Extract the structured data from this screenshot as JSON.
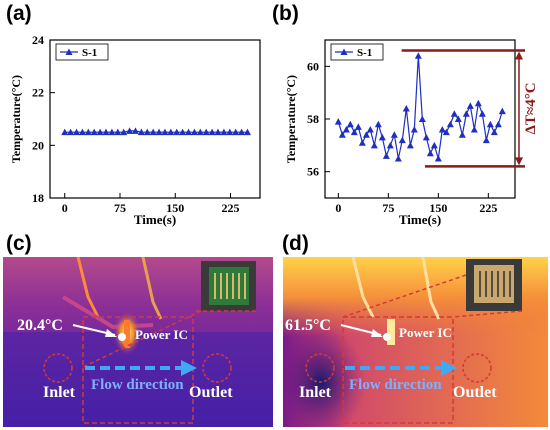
{
  "panels": {
    "a": {
      "letter": "(a)"
    },
    "b": {
      "letter": "(b)"
    },
    "c": {
      "letter": "(c)",
      "temp_label": "20.4°C",
      "ic_label": "Power IC",
      "flow_label": "Flow direction",
      "inlet_label": "Inlet",
      "outlet_label": "Outlet"
    },
    "d": {
      "letter": "(d)",
      "temp_label": "61.5°C",
      "ic_label": "Power IC",
      "flow_label": "Flow direction",
      "inlet_label": "Inlet",
      "outlet_label": "Outlet"
    }
  },
  "colors": {
    "line": "#1f2fbf",
    "annotation": "#8b1a1a",
    "ic_dot": "#ffffff",
    "flow_arrow": "#3fa9f5",
    "flow_text": "#7fb0ff",
    "dashed_box": "#c0392b"
  },
  "chart_data": [
    {
      "type": "line",
      "title": "",
      "xlabel": "Time(s)",
      "ylabel": "Temperature(°C)",
      "xlim": [
        -20,
        265
      ],
      "ylim": [
        18,
        24
      ],
      "xticks": [
        0,
        75,
        150,
        225
      ],
      "yticks": [
        18,
        20,
        22,
        24
      ],
      "series": [
        {
          "name": "S-1",
          "x": [
            0,
            8,
            16,
            24,
            32,
            40,
            48,
            56,
            64,
            72,
            80,
            88,
            96,
            104,
            112,
            120,
            128,
            136,
            144,
            152,
            160,
            168,
            176,
            184,
            192,
            200,
            208,
            216,
            224,
            232,
            240,
            248
          ],
          "y": [
            20.5,
            20.5,
            20.5,
            20.5,
            20.5,
            20.5,
            20.5,
            20.5,
            20.5,
            20.5,
            20.5,
            20.55,
            20.55,
            20.5,
            20.5,
            20.5,
            20.5,
            20.5,
            20.5,
            20.5,
            20.5,
            20.5,
            20.5,
            20.5,
            20.5,
            20.5,
            20.5,
            20.5,
            20.5,
            20.5,
            20.5,
            20.5
          ]
        }
      ],
      "legend": "top-left"
    },
    {
      "type": "line",
      "title": "",
      "xlabel": "Time(s)",
      "ylabel": "Temperature(°C)",
      "xlim": [
        -20,
        265
      ],
      "ylim": [
        55,
        61
      ],
      "xticks": [
        0,
        75,
        150,
        225
      ],
      "yticks": [
        56,
        58,
        60
      ],
      "annotation": "ΔT≈4°C",
      "series": [
        {
          "name": "S-1",
          "x": [
            0,
            6,
            12,
            18,
            24,
            30,
            36,
            42,
            48,
            54,
            60,
            66,
            72,
            78,
            84,
            90,
            96,
            102,
            108,
            114,
            120,
            126,
            132,
            138,
            144,
            150,
            156,
            162,
            168,
            174,
            180,
            186,
            192,
            198,
            204,
            210,
            216,
            222,
            228,
            234,
            240,
            246
          ],
          "y": [
            57.9,
            57.4,
            57.6,
            57.8,
            57.5,
            57.7,
            57.1,
            57.4,
            57.6,
            57.0,
            57.8,
            57.3,
            56.6,
            57.0,
            57.4,
            56.5,
            57.2,
            58.4,
            57.0,
            57.6,
            60.4,
            58.0,
            57.3,
            56.7,
            57.0,
            56.5,
            57.6,
            57.5,
            57.8,
            58.2,
            58.0,
            57.4,
            58.2,
            58.5,
            57.6,
            58.6,
            58.2,
            57.2,
            57.8,
            57.5,
            57.8,
            58.3
          ]
        }
      ],
      "legend": "top-left"
    }
  ]
}
